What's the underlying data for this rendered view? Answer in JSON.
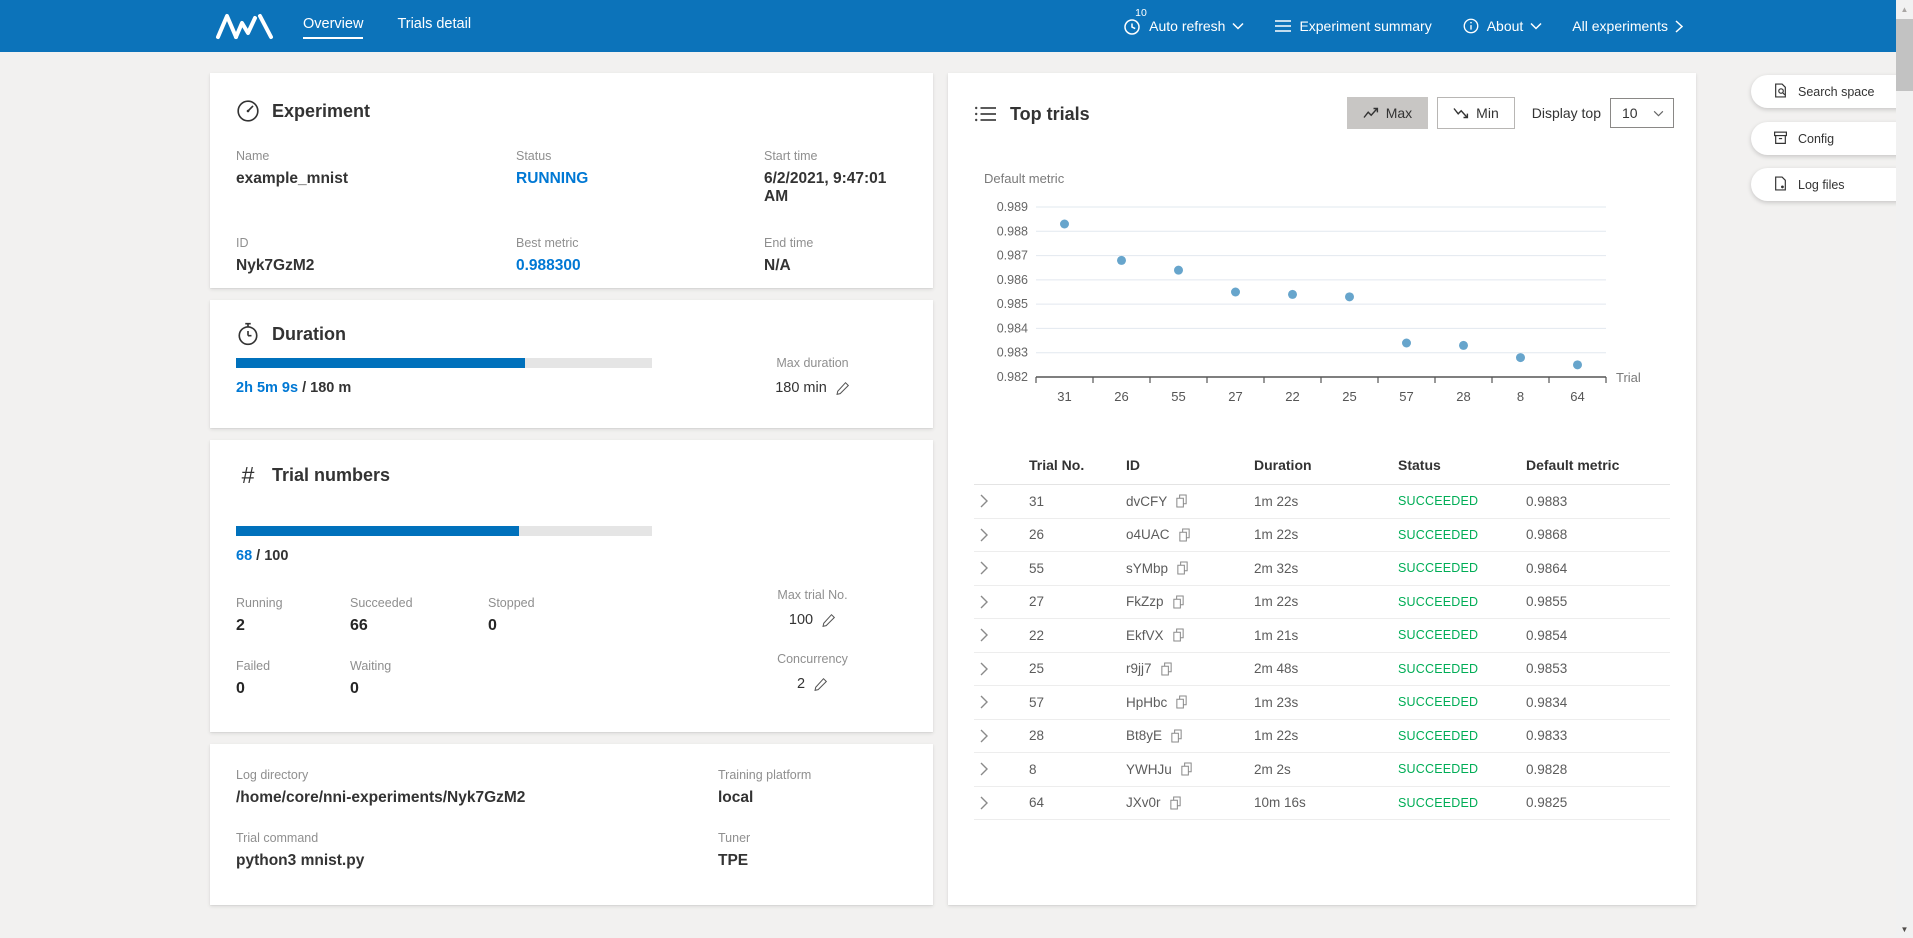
{
  "header": {
    "nav": [
      {
        "label": "Overview"
      },
      {
        "label": "Trials detail"
      }
    ],
    "auto_refresh": {
      "badge": "10",
      "label": "Auto refresh"
    },
    "experiment_summary": "Experiment summary",
    "about": "About",
    "all_experiments": "All experiments"
  },
  "experiment_panel": {
    "title": "Experiment",
    "fields": [
      {
        "label": "Name",
        "value": "example_mnist",
        "accent": false
      },
      {
        "label": "Status",
        "value": "RUNNING",
        "accent": true
      },
      {
        "label": "Start time",
        "value": "6/2/2021, 9:47:01 AM",
        "accent": false
      },
      {
        "label": "ID",
        "value": "Nyk7GzM2",
        "accent": false
      },
      {
        "label": "Best metric",
        "value": "0.988300",
        "accent": true
      },
      {
        "label": "End time",
        "value": "N/A",
        "accent": false
      }
    ]
  },
  "duration_panel": {
    "title": "Duration",
    "progress_percent": 69.5,
    "elapsed": "2h 5m 9s",
    "total_text": " / 180 m",
    "max_duration_label": "Max duration",
    "max_duration_value": "180 min"
  },
  "trial_numbers_panel": {
    "title": "Trial numbers",
    "progress_percent": 68,
    "current": "68",
    "total_text": " / 100",
    "stats": [
      {
        "label": "Running",
        "value": "2"
      },
      {
        "label": "Succeeded",
        "value": "66"
      },
      {
        "label": "Stopped",
        "value": "0"
      },
      {
        "label": "Failed",
        "value": "0"
      },
      {
        "label": "Waiting",
        "value": "0"
      }
    ],
    "max_trial_label": "Max trial No.",
    "max_trial_value": "100",
    "concurrency_label": "Concurrency",
    "concurrency_value": "2"
  },
  "info_panel": {
    "fields": [
      {
        "label": "Log directory",
        "value": "/home/core/nni-experiments/Nyk7GzM2"
      },
      {
        "label": "Training platform",
        "value": "local"
      },
      {
        "label": "Trial command",
        "value": "python3 mnist.py"
      },
      {
        "label": "Tuner",
        "value": "TPE"
      }
    ]
  },
  "top_trials": {
    "title": "Top trials",
    "max_button": "Max",
    "min_button": "Min",
    "display_top_label": "Display top",
    "display_top_value": "10"
  },
  "chart_data": {
    "type": "scatter",
    "title": "Top trials default metric",
    "ylabel": "Default metric",
    "xlabel": "Trial",
    "categories": [
      "31",
      "26",
      "55",
      "27",
      "22",
      "25",
      "57",
      "28",
      "8",
      "64"
    ],
    "values": [
      0.9883,
      0.9868,
      0.9864,
      0.9855,
      0.9854,
      0.9853,
      0.9834,
      0.9833,
      0.9828,
      0.9825
    ],
    "ylim": [
      0.982,
      0.989
    ],
    "ytick_step": 0.001,
    "grid": true,
    "legend": "none"
  },
  "trials_table": {
    "headers": [
      "Trial No.",
      "ID",
      "Duration",
      "Status",
      "Default metric"
    ],
    "rows": [
      {
        "no": "31",
        "id": "dvCFY",
        "duration": "1m 22s",
        "status": "SUCCEEDED",
        "metric": "0.9883"
      },
      {
        "no": "26",
        "id": "o4UAC",
        "duration": "1m 22s",
        "status": "SUCCEEDED",
        "metric": "0.9868"
      },
      {
        "no": "55",
        "id": "sYMbp",
        "duration": "2m 32s",
        "status": "SUCCEEDED",
        "metric": "0.9864"
      },
      {
        "no": "27",
        "id": "FkZzp",
        "duration": "1m 22s",
        "status": "SUCCEEDED",
        "metric": "0.9855"
      },
      {
        "no": "22",
        "id": "EkfVX",
        "duration": "1m 21s",
        "status": "SUCCEEDED",
        "metric": "0.9854"
      },
      {
        "no": "25",
        "id": "r9jj7",
        "duration": "2m 48s",
        "status": "SUCCEEDED",
        "metric": "0.9853"
      },
      {
        "no": "57",
        "id": "HpHbc",
        "duration": "1m 23s",
        "status": "SUCCEEDED",
        "metric": "0.9834"
      },
      {
        "no": "28",
        "id": "Bt8yE",
        "duration": "1m 22s",
        "status": "SUCCEEDED",
        "metric": "0.9833"
      },
      {
        "no": "8",
        "id": "YWHJu",
        "duration": "2m 2s",
        "status": "SUCCEEDED",
        "metric": "0.9828"
      },
      {
        "no": "64",
        "id": "JXv0r",
        "duration": "10m 16s",
        "status": "SUCCEEDED",
        "metric": "0.9825"
      }
    ]
  },
  "side_buttons": [
    {
      "label": "Search space",
      "icon": "search-space-icon"
    },
    {
      "label": "Config",
      "icon": "config-icon"
    },
    {
      "label": "Log files",
      "icon": "log-files-icon"
    }
  ],
  "colors": {
    "header_blue": "#0c73ba",
    "accent_blue": "#0078d4",
    "progress_blue": "#0071bc",
    "success_green": "#00ad56",
    "scatter_point": "#569bc7"
  }
}
